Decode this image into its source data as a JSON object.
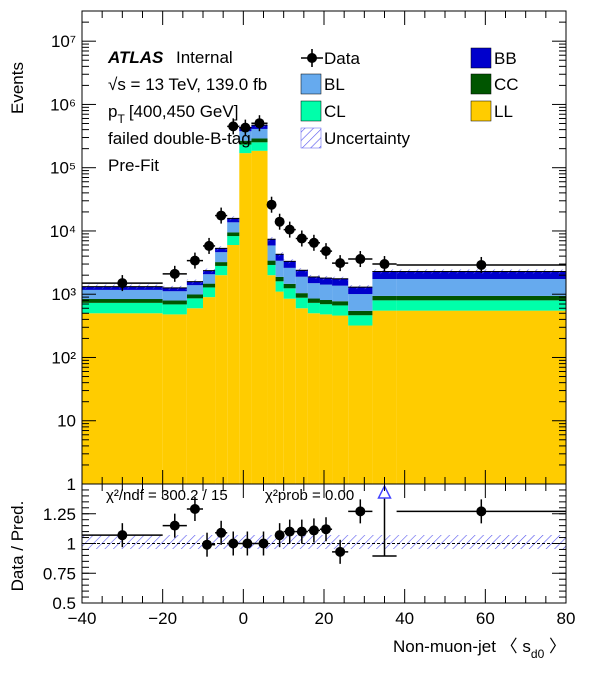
{
  "header": {
    "atlas": "ATLAS",
    "internal": "Internal",
    "energy": "√s = 13 TeV, 139.0 fb",
    "pt": "p",
    "pt_sub": "T",
    "pt_range": "[400,450 GeV]",
    "selection": "failed double-B-tag",
    "fit": "Pre-Fit"
  },
  "legend": {
    "data": "Data",
    "bb": "BB",
    "bl": "BL",
    "cc": "CC",
    "cl": "CL",
    "ll": "LL",
    "unc": "Uncertainty"
  },
  "colors": {
    "bb": "#0000cc",
    "bl": "#66aaee",
    "cc": "#005500",
    "cl": "#00ffaa",
    "ll": "#ffcc00"
  },
  "ratio_text": {
    "chi2ndf": "χ²/ndf = 300.2 / 15",
    "chi2prob": "χ²prob = 0.00"
  },
  "chart_data": {
    "type": "bar",
    "stacked": true,
    "ylabel": "Events",
    "xlabel": "Non-muon-jet  〈 s",
    "xlabel_sub": "d0",
    "xlabel_tail": " 〉",
    "ratio_ylabel": "Data / Pred.",
    "xlim": [
      -40,
      80
    ],
    "ylim": [
      1,
      30000000
    ],
    "yscale": "log",
    "ratio_ylim": [
      0.5,
      1.5
    ],
    "x_ticks": [
      "−40",
      "−20",
      "0",
      "20",
      "40",
      "60",
      "80"
    ],
    "y_ticks": [
      "1",
      "10",
      "10²",
      "10³",
      "10⁴",
      "10⁵",
      "10⁶",
      "10⁷"
    ],
    "ratio_ticks": [
      "0.5",
      "0.75",
      "1",
      "1.25"
    ],
    "bin_edges": [
      -40,
      -20,
      -14,
      -10,
      -7,
      -4,
      -1,
      2,
      6,
      8,
      10,
      13,
      16,
      19,
      22,
      26,
      32,
      38,
      80
    ],
    "series": [
      {
        "name": "LL",
        "values": [
          500,
          480,
          600,
          900,
          2000,
          6000,
          170000,
          185000,
          2000,
          1100,
          850,
          600,
          500,
          480,
          460,
          320,
          550,
          550
        ]
      },
      {
        "name": "CL",
        "values": [
          230,
          210,
          260,
          380,
          800,
          2300,
          62000,
          67000,
          900,
          500,
          390,
          280,
          230,
          215,
          205,
          145,
          250,
          250
        ]
      },
      {
        "name": "CC",
        "values": [
          110,
          105,
          130,
          190,
          420,
          1200,
          35000,
          38000,
          500,
          280,
          220,
          160,
          125,
          115,
          110,
          80,
          140,
          140
        ]
      },
      {
        "name": "BL",
        "values": [
          330,
          320,
          400,
          600,
          1400,
          4200,
          110000,
          120000,
          2500,
          1500,
          1150,
          850,
          640,
          610,
          590,
          460,
          800,
          800
        ]
      },
      {
        "name": "BB",
        "values": [
          150,
          145,
          190,
          290,
          690,
          2100,
          55000,
          60000,
          1500,
          900,
          700,
          500,
          380,
          380,
          390,
          290,
          550,
          550
        ]
      }
    ],
    "data_points": {
      "x": [
        -30,
        -17,
        -12,
        -8.5,
        -5.5,
        -2.5,
        0.5,
        4,
        7,
        9,
        11.5,
        14.5,
        17.5,
        20.5,
        24,
        29,
        35,
        59
      ],
      "y": [
        1500,
        2100,
        3400,
        5800,
        17500,
        450000,
        430000,
        505000,
        26000,
        14000,
        10500,
        7600,
        6500,
        4800,
        3100,
        3600,
        3000,
        2900
      ]
    },
    "ratio_points": {
      "x": [
        -30,
        -17,
        -12,
        -9,
        -5.5,
        -2.5,
        1,
        5,
        9,
        11.5,
        14.5,
        17.5,
        20.5,
        24,
        29,
        59
      ],
      "y": [
        1.07,
        1.15,
        1.29,
        0.99,
        1.09,
        1.0,
        1.0,
        1.0,
        1.07,
        1.1,
        1.1,
        1.11,
        1.12,
        0.93,
        1.27,
        1.27
      ]
    },
    "ratio_offscale_x": 35
  }
}
